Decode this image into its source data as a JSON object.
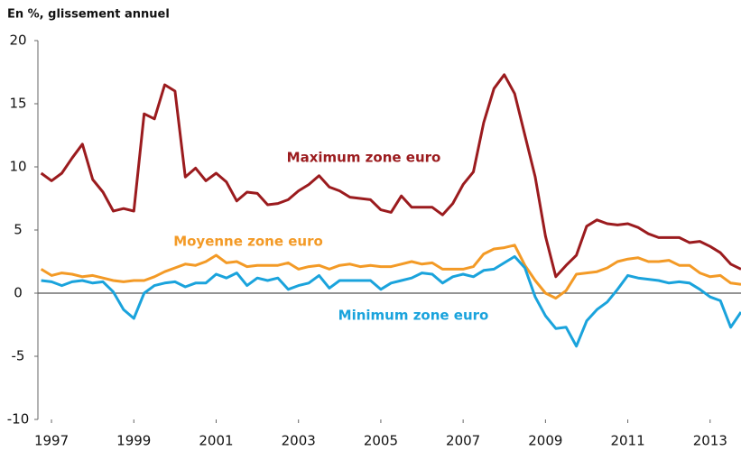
{
  "chart_data": {
    "type": "line",
    "ylabel": "En %, glissement annuel",
    "xlim": [
      1996.67,
      2013.75
    ],
    "ylim": [
      -10,
      20
    ],
    "yticks": [
      -10,
      -5,
      0,
      5,
      10,
      15,
      20
    ],
    "xticks": [
      1997,
      1999,
      2001,
      2003,
      2005,
      2007,
      2009,
      2011,
      2013
    ],
    "x": [
      1996.75,
      1997,
      1997.25,
      1997.5,
      1997.75,
      1998,
      1998.25,
      1998.5,
      1998.75,
      1999,
      1999.25,
      1999.5,
      1999.75,
      2000,
      2000.25,
      2000.5,
      2000.75,
      2001,
      2001.25,
      2001.5,
      2001.75,
      2002,
      2002.25,
      2002.5,
      2002.75,
      2003,
      2003.25,
      2003.5,
      2003.75,
      2004,
      2004.25,
      2004.5,
      2004.75,
      2005,
      2005.25,
      2005.5,
      2005.75,
      2006,
      2006.25,
      2006.5,
      2006.75,
      2007,
      2007.25,
      2007.5,
      2007.75,
      2008,
      2008.25,
      2008.5,
      2008.75,
      2009,
      2009.25,
      2009.5,
      2009.75,
      2010,
      2010.25,
      2010.5,
      2010.75,
      2011,
      2011.25,
      2011.5,
      2011.75,
      2012,
      2012.25,
      2012.5,
      2012.75,
      2013,
      2013.25,
      2013.5,
      2013.75
    ],
    "series": [
      {
        "name": "Maximum zone euro",
        "color": "#9b1b1e",
        "values": [
          9.5,
          8.9,
          9.5,
          10.7,
          11.8,
          9.0,
          8.0,
          6.5,
          6.7,
          6.5,
          14.2,
          13.8,
          16.5,
          16.0,
          9.2,
          9.9,
          8.9,
          9.5,
          8.8,
          7.3,
          8.0,
          7.9,
          7.0,
          7.1,
          7.4,
          8.1,
          8.6,
          9.3,
          8.4,
          8.1,
          7.6,
          7.5,
          7.4,
          6.6,
          6.4,
          7.7,
          6.8,
          6.8,
          6.8,
          6.2,
          7.1,
          8.6,
          9.6,
          13.5,
          16.2,
          17.3,
          15.8,
          12.5,
          9.2,
          4.5,
          1.3,
          2.2,
          3.0,
          5.3,
          5.8,
          5.5,
          5.4,
          5.5,
          5.2,
          4.7,
          4.4,
          4.4,
          4.4,
          4.0,
          4.1,
          3.7,
          3.2,
          2.3,
          1.9
        ]
      },
      {
        "name": "Moyenne zone euro",
        "color": "#f39a26",
        "values": [
          1.9,
          1.4,
          1.6,
          1.5,
          1.3,
          1.4,
          1.2,
          1.0,
          0.9,
          1.0,
          1.0,
          1.3,
          1.7,
          2.0,
          2.3,
          2.2,
          2.5,
          3.0,
          2.4,
          2.5,
          2.1,
          2.2,
          2.2,
          2.2,
          2.4,
          1.9,
          2.1,
          2.2,
          1.9,
          2.2,
          2.3,
          2.1,
          2.2,
          2.1,
          2.1,
          2.3,
          2.5,
          2.3,
          2.4,
          1.9,
          1.9,
          1.9,
          2.1,
          3.1,
          3.5,
          3.6,
          3.8,
          2.2,
          1.0,
          0.0,
          -0.4,
          0.2,
          1.5,
          1.6,
          1.7,
          2.0,
          2.5,
          2.7,
          2.8,
          2.5,
          2.5,
          2.6,
          2.2,
          2.2,
          1.6,
          1.3,
          1.4,
          0.8,
          0.7
        ]
      },
      {
        "name": "Minimum zone euro",
        "color": "#1aa3dc",
        "values": [
          1.0,
          0.9,
          0.6,
          0.9,
          1.0,
          0.8,
          0.9,
          0.1,
          -1.3,
          -2.0,
          0.0,
          0.6,
          0.8,
          0.9,
          0.5,
          0.8,
          0.8,
          1.5,
          1.2,
          1.6,
          0.6,
          1.2,
          1.0,
          1.2,
          0.3,
          0.6,
          0.8,
          1.4,
          0.4,
          1.0,
          1.0,
          1.0,
          1.0,
          0.3,
          0.8,
          1.0,
          1.2,
          1.6,
          1.5,
          0.8,
          1.3,
          1.5,
          1.3,
          1.8,
          1.9,
          2.4,
          2.9,
          2.0,
          -0.3,
          -1.8,
          -2.8,
          -2.7,
          -4.2,
          -2.2,
          -1.3,
          -0.7,
          0.3,
          1.4,
          1.2,
          1.1,
          1.0,
          0.8,
          0.9,
          0.8,
          0.3,
          -0.3,
          -0.6,
          -2.7,
          -1.5
        ]
      }
    ]
  }
}
